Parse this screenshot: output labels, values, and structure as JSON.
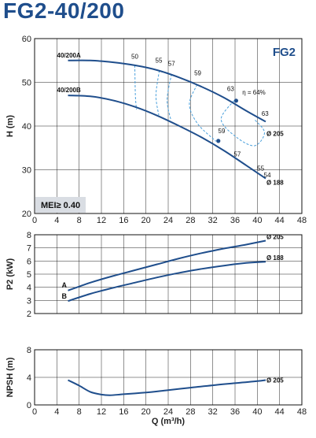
{
  "title": "FG2-40/200",
  "chart_data": [
    {
      "type": "line",
      "panel": "head",
      "ylabel": "H (m)",
      "badge": "FG2",
      "mei_label": "MEI≥ 0.40",
      "xlim": [
        0,
        48
      ],
      "ylim": [
        20,
        60
      ],
      "x_ticks": [
        "0",
        "4",
        "8",
        "12",
        "16",
        "20",
        "24",
        "28",
        "32",
        "36",
        "40",
        "44",
        "48"
      ],
      "y_ticks": [
        "20",
        "30",
        "40",
        "50",
        "60"
      ],
      "series": [
        {
          "name": "40/200A",
          "impeller": "Ø 205",
          "x": [
            6,
            10,
            14,
            18,
            22,
            26,
            30,
            34,
            38,
            41.5
          ],
          "y": [
            55,
            55,
            54.6,
            53.9,
            52.8,
            51.1,
            49,
            46.5,
            43.5,
            41
          ]
        },
        {
          "name": "40/200B",
          "impeller": "Ø 188",
          "x": [
            6,
            10,
            14,
            18,
            22,
            26,
            30,
            34,
            38,
            41.5
          ],
          "y": [
            47,
            46.8,
            45.9,
            44.4,
            42.4,
            40,
            37.4,
            34.4,
            31,
            28
          ]
        }
      ],
      "efficiency_labels": [
        "50",
        "55",
        "57",
        "59",
        "63",
        "63",
        "59",
        "57",
        "55",
        "54"
      ],
      "efficiency_marker": "η = 64%",
      "efficiency_contours": [
        {
          "label": "50",
          "x": [
            18,
            18.1,
            18.3
          ],
          "y": [
            53.9,
            47,
            43.8
          ]
        },
        {
          "label": "55",
          "x": [
            22.4,
            21.8,
            22.3
          ],
          "y": [
            52.7,
            47,
            42.5
          ]
        },
        {
          "label": "57",
          "x": [
            24.6,
            23.8,
            24.5
          ],
          "y": [
            51.9,
            46,
            41.3
          ]
        },
        {
          "label": "59",
          "x": [
            29.2,
            27.8,
            29.3,
            32.6
          ],
          "y": [
            49.5,
            45,
            40.5,
            36.5
          ]
        },
        {
          "label": "63",
          "x": [
            35.8,
            33.5,
            36.2,
            39.5,
            41.3,
            39.5
          ],
          "y": [
            45.8,
            41.5,
            37.5,
            35.5,
            38.5,
            41.5
          ]
        }
      ],
      "efficiency_points": [
        {
          "x": 36.2,
          "y": 45.8
        },
        {
          "x": 33.0,
          "y": 36.6
        }
      ]
    },
    {
      "type": "line",
      "panel": "power",
      "ylabel": "P2 (kW)",
      "xlim": [
        0,
        48
      ],
      "ylim": [
        2,
        8
      ],
      "y_ticks": [
        "2",
        "3",
        "4",
        "5",
        "6",
        "7",
        "8"
      ],
      "series": [
        {
          "name": "A",
          "impeller": "Ø 205",
          "x": [
            6,
            10,
            14,
            18,
            22,
            26,
            30,
            34,
            38,
            41.5
          ],
          "y": [
            3.75,
            4.35,
            4.85,
            5.3,
            5.75,
            6.2,
            6.6,
            6.95,
            7.25,
            7.55
          ]
        },
        {
          "name": "B",
          "impeller": "Ø 188",
          "x": [
            6,
            10,
            14,
            18,
            22,
            26,
            30,
            34,
            38,
            41.5
          ],
          "y": [
            2.95,
            3.5,
            3.95,
            4.35,
            4.75,
            5.1,
            5.4,
            5.65,
            5.85,
            5.95
          ]
        }
      ]
    },
    {
      "type": "line",
      "panel": "npsh",
      "ylabel": "NPSH (m)",
      "xlabel": "Q (m³/h)",
      "xlim": [
        0,
        48
      ],
      "ylim": [
        0,
        8
      ],
      "x_ticks": [
        "0",
        "4",
        "8",
        "12",
        "16",
        "20",
        "24",
        "28",
        "32",
        "36",
        "40",
        "44",
        "48"
      ],
      "y_ticks": [
        "0",
        "4",
        "8"
      ],
      "series": [
        {
          "name": "Ø 205",
          "x": [
            6,
            8,
            10,
            12,
            13.5,
            16,
            20,
            24,
            28,
            32,
            36,
            40,
            41.5
          ],
          "y": [
            3.6,
            2.8,
            1.9,
            1.5,
            1.4,
            1.55,
            1.8,
            2.15,
            2.5,
            2.85,
            3.15,
            3.45,
            3.6
          ]
        }
      ]
    }
  ],
  "colors": {
    "curve": "#1f4e8c",
    "dash": "#4aa0dc",
    "grid": "#222222",
    "badge_bg": "#d9dde3",
    "title": "#1f4e8c"
  }
}
